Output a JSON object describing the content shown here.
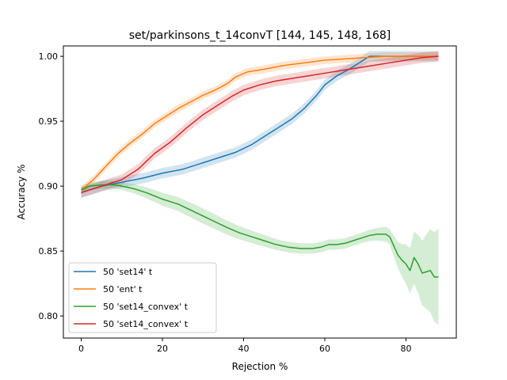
{
  "chart_data": {
    "type": "line",
    "title": "set/parkinsons_t_14convT  [144, 145, 148, 168]",
    "xlabel": "Rejection %",
    "ylabel": "Accuracy %",
    "xlim": [
      -4.4,
      92.4
    ],
    "ylim": [
      0.783,
      1.008
    ],
    "xticks": [
      0,
      20,
      40,
      60,
      80
    ],
    "yticks": [
      0.8,
      0.85,
      0.9,
      0.95,
      1.0
    ],
    "xtick_labels": [
      "0",
      "20",
      "40",
      "60",
      "80"
    ],
    "ytick_labels": [
      "0.80",
      "0.85",
      "0.90",
      "0.95",
      "1.00"
    ],
    "grid": false,
    "legend_position": "lower-left",
    "series": [
      {
        "name": "50 'set14' t",
        "color": "#1f77b4",
        "band": 0.004,
        "points": [
          [
            0,
            0.895
          ],
          [
            5,
            0.9
          ],
          [
            10,
            0.903
          ],
          [
            15,
            0.906
          ],
          [
            20,
            0.91
          ],
          [
            25,
            0.913
          ],
          [
            30,
            0.918
          ],
          [
            35,
            0.923
          ],
          [
            38,
            0.926
          ],
          [
            42,
            0.932
          ],
          [
            45,
            0.938
          ],
          [
            48,
            0.944
          ],
          [
            52,
            0.952
          ],
          [
            55,
            0.96
          ],
          [
            58,
            0.97
          ],
          [
            60,
            0.978
          ],
          [
            63,
            0.985
          ],
          [
            66,
            0.99
          ],
          [
            69,
            0.996
          ],
          [
            71,
            1.0
          ],
          [
            75,
            1.0
          ],
          [
            88,
            1.0
          ]
        ]
      },
      {
        "name": "50 'ent' t",
        "color": "#ff7f0e",
        "band": 0.003,
        "points": [
          [
            0,
            0.897
          ],
          [
            3,
            0.905
          ],
          [
            6,
            0.915
          ],
          [
            9,
            0.925
          ],
          [
            12,
            0.933
          ],
          [
            15,
            0.94
          ],
          [
            18,
            0.948
          ],
          [
            21,
            0.954
          ],
          [
            24,
            0.96
          ],
          [
            27,
            0.965
          ],
          [
            30,
            0.97
          ],
          [
            33,
            0.974
          ],
          [
            36,
            0.979
          ],
          [
            38,
            0.984
          ],
          [
            41,
            0.988
          ],
          [
            45,
            0.99
          ],
          [
            50,
            0.993
          ],
          [
            55,
            0.995
          ],
          [
            60,
            0.997
          ],
          [
            65,
            0.998
          ],
          [
            70,
            0.999
          ],
          [
            75,
            1.0
          ],
          [
            88,
            1.0
          ]
        ]
      },
      {
        "name": "50 'set14_convex' t",
        "color": "#2ca02c",
        "band_points": [
          [
            0,
            0.003
          ],
          [
            10,
            0.003
          ],
          [
            20,
            0.005
          ],
          [
            30,
            0.006
          ],
          [
            40,
            0.005
          ],
          [
            50,
            0.004
          ],
          [
            60,
            0.004
          ],
          [
            70,
            0.004
          ],
          [
            76,
            0.006
          ],
          [
            78,
            0.01
          ],
          [
            80,
            0.015
          ],
          [
            82,
            0.02
          ],
          [
            84,
            0.025
          ],
          [
            86,
            0.032
          ],
          [
            88,
            0.037
          ]
        ],
        "points": [
          [
            0,
            0.897
          ],
          [
            2,
            0.9
          ],
          [
            5,
            0.901
          ],
          [
            8,
            0.901
          ],
          [
            10,
            0.9
          ],
          [
            13,
            0.898
          ],
          [
            16,
            0.895
          ],
          [
            20,
            0.89
          ],
          [
            24,
            0.886
          ],
          [
            28,
            0.88
          ],
          [
            32,
            0.874
          ],
          [
            36,
            0.868
          ],
          [
            39,
            0.864
          ],
          [
            42,
            0.861
          ],
          [
            45,
            0.858
          ],
          [
            48,
            0.855
          ],
          [
            51,
            0.853
          ],
          [
            54,
            0.852
          ],
          [
            57,
            0.852
          ],
          [
            59,
            0.853
          ],
          [
            61,
            0.855
          ],
          [
            63,
            0.855
          ],
          [
            65,
            0.856
          ],
          [
            67,
            0.858
          ],
          [
            69,
            0.86
          ],
          [
            71,
            0.862
          ],
          [
            73,
            0.863
          ],
          [
            75,
            0.863
          ],
          [
            76,
            0.861
          ],
          [
            77,
            0.854
          ],
          [
            78,
            0.847
          ],
          [
            79,
            0.843
          ],
          [
            80,
            0.84
          ],
          [
            81,
            0.835
          ],
          [
            82,
            0.845
          ],
          [
            83,
            0.84
          ],
          [
            84,
            0.833
          ],
          [
            85,
            0.834
          ],
          [
            86,
            0.835
          ],
          [
            87,
            0.83
          ],
          [
            88,
            0.83
          ]
        ]
      },
      {
        "name": "50 'set14_convex' t",
        "color": "#d62728",
        "band": 0.004,
        "points": [
          [
            0,
            0.895
          ],
          [
            5,
            0.9
          ],
          [
            10,
            0.905
          ],
          [
            14,
            0.913
          ],
          [
            18,
            0.925
          ],
          [
            22,
            0.934
          ],
          [
            26,
            0.945
          ],
          [
            30,
            0.955
          ],
          [
            34,
            0.963
          ],
          [
            37,
            0.969
          ],
          [
            40,
            0.974
          ],
          [
            44,
            0.978
          ],
          [
            48,
            0.981
          ],
          [
            52,
            0.983
          ],
          [
            56,
            0.985
          ],
          [
            60,
            0.987
          ],
          [
            64,
            0.989
          ],
          [
            68,
            0.991
          ],
          [
            72,
            0.993
          ],
          [
            76,
            0.995
          ],
          [
            80,
            0.997
          ],
          [
            84,
            0.999
          ],
          [
            88,
            1.0
          ]
        ]
      }
    ]
  }
}
